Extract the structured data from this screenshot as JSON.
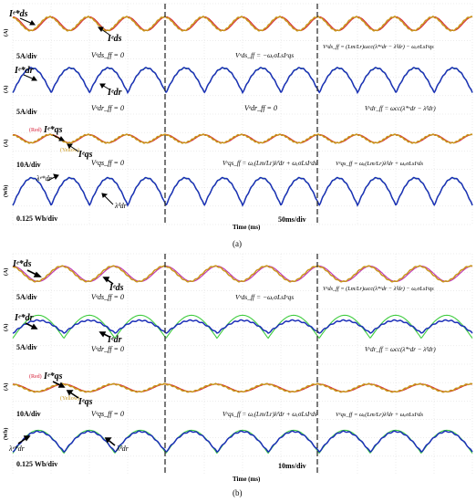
{
  "figure": {
    "panels": [
      {
        "label": "(a)",
        "time_axis_label": "Time (ms)",
        "time_scale": "50ms/div",
        "rows": [
          {
            "scale_label": "5A/div",
            "unit": "(A)"
          },
          {
            "scale_label": "5A/div",
            "unit": "(A)"
          },
          {
            "scale_label": "10A/div",
            "unit": "(A)"
          },
          {
            "scale_label": "0.125 Wb/div",
            "unit": "(Wb)"
          }
        ],
        "equations": {
          "ids_ff_zero": "Vᵉds_ff = 0",
          "ids_ff_mid": "Vᵉds_ff = −ωₑσLsIᵉqs",
          "ids_ff_full": "Vᵉds_ff = (Lm/Lr)ωcc(λ*ᵉdr − λ̂ᵉdr) − ωₑσLsIᵉqs",
          "idr_ff_zero": "Vᵉdr_ff = 0",
          "idr_ff_mid": "Vᵉdr_ff = 0",
          "idr_ff_full": "Vᵉdr_ff = ωcc(λ*ᵉdr − λ̂ᵉdr)",
          "iqs_ff_zero": "Vᵉqs_ff = 0",
          "iqs_ff_mid": "Vᵉqs_ff = ωₑ(Lm/Lr)λ̂ᵉdr + ωₑσLsIᵉds",
          "iqs_ff_full": "Vᵉqs_ff = ωₑ(Lm/Lr)λ̂ᵉdr + ωₑσLsIᵉds"
        },
        "trace_labels": {
          "ids_ref": "Iᵉ*ds",
          "ids": "Iᵉds",
          "idr_ref": "Iᵉ*dr",
          "idr": "Iᵉdr",
          "iqs_ref": "Iᵉ*qs",
          "iqs": "Iᵉqs",
          "iqs_ref_color": "(Red)",
          "iqs_color": "(Yellow)",
          "lambda_ref": "λᵉ*dr",
          "lambda_est": "λ̂ᵉdr"
        }
      },
      {
        "label": "(b)",
        "time_axis_label": "Time (ms)",
        "time_scale": "10ms/div",
        "rows": [
          {
            "scale_label": "5A/div",
            "unit": "(A)"
          },
          {
            "scale_label": "5A/div",
            "unit": "(A)"
          },
          {
            "scale_label": "10A/div",
            "unit": "(A)"
          },
          {
            "scale_label": "0.125 Wb/div",
            "unit": "(Wb)"
          }
        ],
        "equations": {
          "ids_ff_zero": "Vᵉds_ff = 0",
          "ids_ff_mid": "Vᵉds_ff = −ωₑσLsIᵉqs",
          "ids_ff_full": "Vᵉds_ff = (Lm/Lr)ωcc(λ*ᵉdr − λ̂ᵉdr) − ωₑσLsIᵉqs",
          "idr_ff_zero": "Vᵉdr_ff = 0",
          "idr_ff_full": "Vᵉdr_ff = ωcc(λ*ᵉdr − λ̂ᵉdr)",
          "iqs_ff_zero": "Vᵉqs_ff = 0",
          "iqs_ff_mid": "Vᵉqs_ff = ωₑ(Lm/Lr)λ̂ᵉdr + ωₑσLsIᵉds",
          "iqs_ff_full": "Vᵉqs_ff = ωₑ(Lm/Lr)λ̂ᵉdr + ωₑσLsIᵉds"
        },
        "trace_labels": {
          "ids_ref": "Iᵉ*ds",
          "ids": "Iᵉds",
          "idr_ref": "Iᵉ*dr",
          "idr": "Iᵉdr",
          "iqs_ref": "Iᵉ*qs",
          "iqs": "Iᵉqs",
          "iqs_ref_color": "(Red)",
          "iqs_color": "(Yellow)",
          "lambda_ref": "λᵉ*dr",
          "lambda_est": "λ̂ᵉdr"
        }
      }
    ]
  },
  "colors": {
    "red": "#d6213a",
    "orange": "#c8961c",
    "green": "#3ecc3e",
    "blue": "#1c2fb8",
    "magenta": "#c032b4",
    "grid": "#cfcfcf",
    "divider": "#333333"
  },
  "chart_data": [
    {
      "type": "line",
      "title": "(a)",
      "xlabel": "Time (ms)",
      "x_scale": "50ms/div",
      "grid": true,
      "series": [
        {
          "name": "Iᵉ*ds",
          "color": "red",
          "shape": "sinusoid",
          "cycles": 12,
          "amplitude_div": 0.25
        },
        {
          "name": "Iᵉds",
          "color": "orange",
          "shape": "sinusoid",
          "cycles": 12,
          "amplitude_div": 0.25
        },
        {
          "name": "Iᵉ*dr",
          "color": "green",
          "shape": "cusp-wave",
          "cycles": 12,
          "amplitude_div": 0.45
        },
        {
          "name": "Iᵉdr",
          "color": "blue",
          "shape": "cusp-wave",
          "cycles": 12,
          "amplitude_div": 0.45
        },
        {
          "name": "Iᵉ*qs",
          "color": "red",
          "shape": "sinusoid",
          "cycles": 12,
          "amplitude_div": 0.15
        },
        {
          "name": "Iᵉqs",
          "color": "orange",
          "shape": "sinusoid",
          "cycles": 12,
          "amplitude_div": 0.15
        },
        {
          "name": "λᵉ*dr",
          "color": "green",
          "shape": "cusp-wave",
          "cycles": 12,
          "amplitude_div": 0.5
        },
        {
          "name": "λ̂ᵉdr",
          "color": "blue",
          "shape": "cusp-wave",
          "cycles": 12,
          "amplitude_div": 0.5
        }
      ]
    },
    {
      "type": "line",
      "title": "(b)",
      "xlabel": "Time (ms)",
      "x_scale": "10ms/div",
      "grid": true,
      "series": [
        {
          "name": "Iᵉ*ds",
          "color": "magenta",
          "shape": "sinusoid",
          "cycles": 9,
          "amplitude_div": 0.3
        },
        {
          "name": "Iᵉds",
          "color": "orange",
          "shape": "sinusoid",
          "cycles": 9,
          "amplitude_div": 0.3
        },
        {
          "name": "Iᵉ*dr",
          "color": "green",
          "shape": "cusp-wave",
          "cycles": 9,
          "amplitude_div": 0.45
        },
        {
          "name": "Iᵉdr",
          "color": "blue",
          "shape": "cusp-wave",
          "cycles": 9,
          "amplitude_div": 0.25
        },
        {
          "name": "Iᵉ*qs",
          "color": "red",
          "shape": "sinusoid",
          "cycles": 9,
          "amplitude_div": 0.15
        },
        {
          "name": "Iᵉqs",
          "color": "orange",
          "shape": "sinusoid",
          "cycles": 9,
          "amplitude_div": 0.15
        },
        {
          "name": "λᵉ*dr",
          "color": "green",
          "shape": "cusp-wave",
          "cycles": 9,
          "amplitude_div": 0.45
        },
        {
          "name": "λ̂ᵉdr",
          "color": "blue",
          "shape": "cusp-wave",
          "cycles": 9,
          "amplitude_div": 0.4
        }
      ]
    }
  ]
}
